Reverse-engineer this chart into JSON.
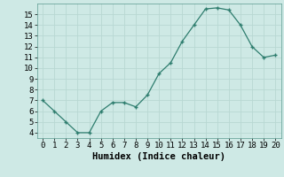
{
  "x": [
    0,
    1,
    2,
    3,
    4,
    5,
    6,
    7,
    8,
    9,
    10,
    11,
    12,
    13,
    14,
    15,
    16,
    17,
    18,
    19,
    20
  ],
  "y": [
    7.0,
    6.0,
    5.0,
    4.0,
    4.0,
    6.0,
    6.8,
    6.8,
    6.4,
    7.5,
    9.5,
    10.5,
    12.5,
    14.0,
    15.5,
    15.6,
    15.4,
    14.0,
    12.0,
    11.0,
    11.2
  ],
  "line_color": "#2e7d6e",
  "marker_color": "#2e7d6e",
  "bg_color": "#cee9e5",
  "grid_color": "#b8d8d3",
  "xlabel": "Humidex (Indice chaleur)",
  "ylim": [
    3.5,
    16.0
  ],
  "xlim": [
    -0.5,
    20.5
  ],
  "yticks": [
    4,
    5,
    6,
    7,
    8,
    9,
    10,
    11,
    12,
    13,
    14,
    15
  ],
  "xticks": [
    0,
    1,
    2,
    3,
    4,
    5,
    6,
    7,
    8,
    9,
    10,
    11,
    12,
    13,
    14,
    15,
    16,
    17,
    18,
    19,
    20
  ],
  "xlabel_fontsize": 7.5,
  "tick_fontsize": 6.5,
  "xlabel_fontweight": "bold"
}
